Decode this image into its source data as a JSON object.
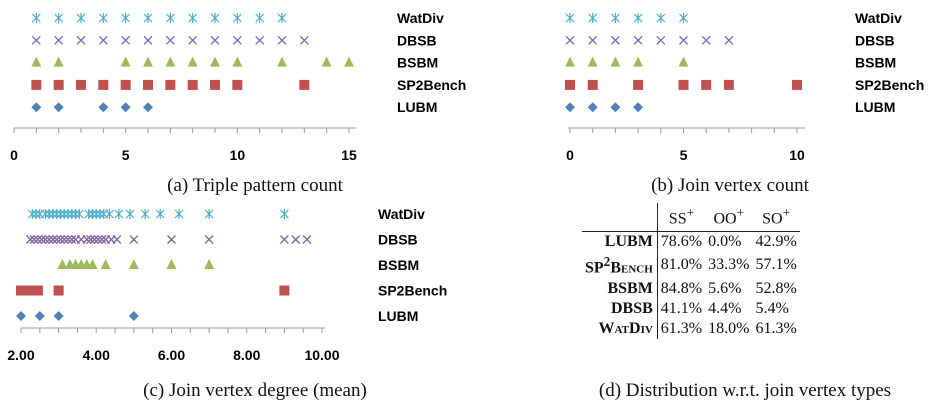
{
  "chart_data": [
    {
      "type": "scatter",
      "caption": "(a) Triple pattern count",
      "xlim": [
        0,
        15
      ],
      "xticks": [
        0,
        5,
        10,
        15
      ],
      "xtick_labels": [
        "0",
        "5",
        "10",
        "15"
      ],
      "series": [
        {
          "name": "WatDiv",
          "marker": "asterisk",
          "color": "#4bacc6",
          "x": [
            1,
            2,
            3,
            4,
            5,
            6,
            7,
            8,
            9,
            10,
            11,
            12
          ]
        },
        {
          "name": "DBSB",
          "marker": "cross",
          "color": "#8064a2",
          "x": [
            1,
            2,
            3,
            4,
            5,
            6,
            7,
            8,
            9,
            10,
            11,
            12,
            13
          ]
        },
        {
          "name": "BSBM",
          "marker": "triangle",
          "color": "#9bbb59",
          "x": [
            1,
            2,
            5,
            6,
            7,
            8,
            9,
            10,
            12,
            14,
            15
          ]
        },
        {
          "name": "SP2Bench",
          "marker": "square",
          "color": "#c0504d",
          "x": [
            1,
            2,
            3,
            4,
            5,
            6,
            7,
            8,
            9,
            10,
            13
          ]
        },
        {
          "name": "LUBM",
          "marker": "diamond",
          "color": "#4f81bd",
          "x": [
            1,
            2,
            4,
            5,
            6
          ]
        }
      ]
    },
    {
      "type": "scatter",
      "caption": "(b) Join vertex count",
      "xlim": [
        0,
        10
      ],
      "xticks": [
        0,
        5,
        10
      ],
      "xtick_labels": [
        "0",
        "5",
        "10"
      ],
      "series": [
        {
          "name": "WatDiv",
          "marker": "asterisk",
          "color": "#4bacc6",
          "x": [
            0,
            1,
            2,
            3,
            4,
            5
          ]
        },
        {
          "name": "DBSB",
          "marker": "cross",
          "color": "#8064a2",
          "x": [
            0,
            1,
            2,
            3,
            4,
            5,
            6,
            7
          ]
        },
        {
          "name": "BSBM",
          "marker": "triangle",
          "color": "#9bbb59",
          "x": [
            0,
            1,
            2,
            3,
            5
          ]
        },
        {
          "name": "SP2Bench",
          "marker": "square",
          "color": "#c0504d",
          "x": [
            0,
            1,
            3,
            5,
            6,
            7,
            10
          ]
        },
        {
          "name": "LUBM",
          "marker": "diamond",
          "color": "#4f81bd",
          "x": [
            0,
            1,
            2,
            3
          ]
        }
      ]
    },
    {
      "type": "scatter",
      "caption": "(c) Join vertex degree (mean)",
      "xlim": [
        2,
        10
      ],
      "xticks": [
        2,
        4,
        6,
        8,
        10
      ],
      "xtick_labels": [
        "2.00",
        "4.00",
        "6.00",
        "8.00",
        "10.00"
      ],
      "series": [
        {
          "name": "WatDiv",
          "marker": "asterisk",
          "color": "#4bacc6",
          "x": [
            2.3,
            2.4,
            2.5,
            2.65,
            2.75,
            2.85,
            2.95,
            3.05,
            3.15,
            3.25,
            3.35,
            3.45,
            3.55,
            3.8,
            3.9,
            4.0,
            4.1,
            4.2,
            4.35,
            4.6,
            4.9,
            5.3,
            5.7,
            6.2,
            7.0,
            9.0
          ]
        },
        {
          "name": "DBSB",
          "marker": "cross",
          "color": "#8064a2",
          "x": [
            2.25,
            2.35,
            2.45,
            2.55,
            2.65,
            2.75,
            2.85,
            2.95,
            3.05,
            3.15,
            3.25,
            3.35,
            3.45,
            3.6,
            3.75,
            3.85,
            3.95,
            4.05,
            4.15,
            4.25,
            4.4,
            4.55,
            5.0,
            6.0,
            7.0,
            9.0,
            9.3,
            9.6
          ]
        },
        {
          "name": "BSBM",
          "marker": "triangle",
          "color": "#9bbb59",
          "x": [
            3.1,
            3.3,
            3.45,
            3.6,
            3.75,
            3.9,
            4.25,
            5.0,
            6.0,
            7.0
          ]
        },
        {
          "name": "SP2Bench",
          "marker": "square",
          "color": "#c0504d",
          "x": [
            2.0,
            2.15,
            2.3,
            2.45,
            3.0,
            9.0
          ]
        },
        {
          "name": "LUBM",
          "marker": "diamond",
          "color": "#4f81bd",
          "x": [
            2.0,
            2.5,
            3.0,
            5.0
          ]
        }
      ]
    },
    {
      "type": "table",
      "caption": "(d) Distribution w.r.t. join vertex types",
      "columns": [
        "SS+",
        "OO+",
        "SO+"
      ],
      "rows": [
        {
          "label": "LUBM",
          "values": [
            "78.6%",
            "0.0%",
            "42.9%"
          ]
        },
        {
          "label": "SP2Bench",
          "values": [
            "81.0%",
            "33.3%",
            "57.1%"
          ]
        },
        {
          "label": "BSBM",
          "values": [
            "84.8%",
            "5.6%",
            "52.8%"
          ]
        },
        {
          "label": "DBSB",
          "values": [
            "41.1%",
            "4.4%",
            "5.4%"
          ]
        },
        {
          "label": "WatDiv",
          "values": [
            "61.3%",
            "18.0%",
            "61.3%"
          ]
        }
      ]
    }
  ],
  "table_text": {
    "col_ss_base": "SS",
    "col_oo_base": "OO",
    "col_so_base": "SO",
    "sup": "+",
    "sp_prefix": "SP",
    "sp_sup": "2",
    "sp_suffix": "Bench"
  }
}
